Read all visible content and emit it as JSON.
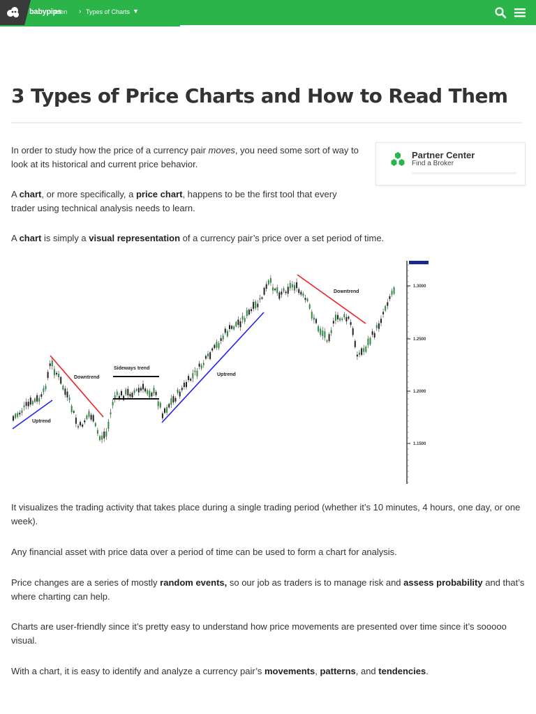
{
  "header": {
    "logo_text": "babypips",
    "breadcrumb_parent": "arten",
    "breadcrumb_current": "Types of Charts",
    "brand_color": "#2ab44a",
    "search_icon": "search-icon",
    "menu_icon": "hamburger-menu-icon"
  },
  "article": {
    "title": "3 Types of Price Charts and How to Read Them",
    "para1_a": "In order to study how the price of a currency pair ",
    "para1_em": "moves",
    "para1_b": ", you need some sort of way to look at its historical and current price behavior.",
    "para2_a": "A ",
    "para2_chart": "chart",
    "para2_b": ", or more specifically, a ",
    "para2_price_chart": "price chart",
    "para2_c": ", happens to be the first tool that every trader using technical analysis needs to learn.",
    "para3_a": "A ",
    "para3_chart": "chart",
    "para3_b": " is simply a ",
    "para3_visual": "visual representation",
    "para3_c": " of a currency pair’s price over a set period of time.",
    "para4": "It visualizes the trading activity that takes place during a single trading period (whether it’s 10 minutes, 4 hours, one day, or one week).",
    "para5": "Any financial asset with price data over a period of time can be used to form a chart for analysis.",
    "para6_a": "Price changes are a series of mostly ",
    "para6_random": "random events,",
    "para6_b": " so our job as traders is to manage risk and ",
    "para6_assess": "assess probability",
    "para6_c": " and that’s where charting can help.",
    "para7": "Charts are user-friendly since it’s pretty easy to understand how price movements are presented over time since it’s sooooo visual.",
    "para8_a": "With a chart, it is easy to identify and analyze a currency pair’s ",
    "para8_movements": "movements",
    "para8_sep1": ", ",
    "para8_patterns": "patterns",
    "para8_sep2": ", and ",
    "para8_tendencies": "tendencies",
    "para8_end": "."
  },
  "partner": {
    "title": "Partner Center",
    "subtitle": "Find a Broker",
    "icon": "green-hexagon-cluster-icon"
  },
  "figure": {
    "annotations": {
      "uptrend_1": "Uptrend",
      "downtrend_1": "Downtrend",
      "sideways": "Sideways trend",
      "uptrend_2": "Uptrend",
      "downtrend_2": "Downtrend"
    },
    "price_axis": [
      "1.3000",
      "1.2500",
      "1.2000",
      "1.1500"
    ],
    "uptrend_color": "#2222ee",
    "downtrend_color": "#ee2222",
    "candle_up_color": "#2e8b3e",
    "candle_down_color": "#222222"
  }
}
